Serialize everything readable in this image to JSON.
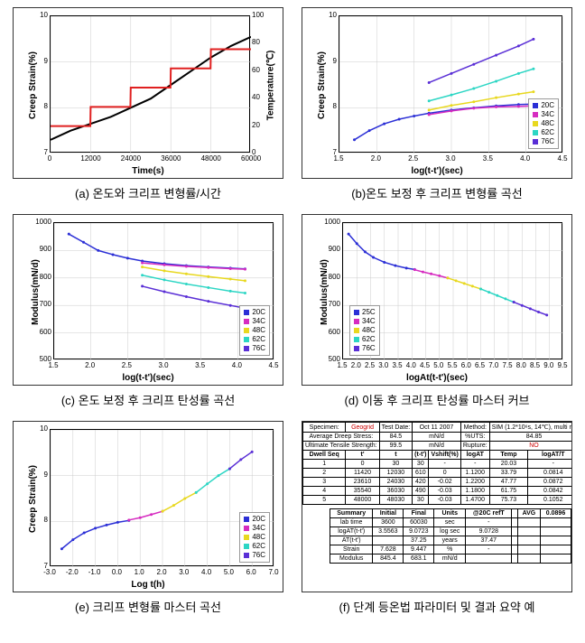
{
  "captions": {
    "a": "(a) 온도와 크리프 변형률/시간",
    "b": "(b)온도 보정 후 크리프 변형률 곡선",
    "c": "(c) 온도 보정 후 크리프 탄성률 곡선",
    "d": "(d) 이동 후 크리프 탄성률 마스터 커브",
    "e": "(e) 크리프 변형률 마스터 곡선",
    "f": "(f) 단계 등온법 파라미터 및 결과 요약 예"
  },
  "series_legend": [
    {
      "label": "20C",
      "color": "#2b2fd6"
    },
    {
      "label": "34C",
      "color": "#d62cc0"
    },
    {
      "label": "48C",
      "color": "#e8d81f"
    },
    {
      "label": "62C",
      "color": "#2cd6c4"
    },
    {
      "label": "76C",
      "color": "#5a2fd6"
    }
  ],
  "series_legend_d": [
    {
      "label": "25C",
      "color": "#2b2fd6"
    },
    {
      "label": "34C",
      "color": "#d62cc0"
    },
    {
      "label": "48C",
      "color": "#e8d81f"
    },
    {
      "label": "62C",
      "color": "#2cd6c4"
    },
    {
      "label": "76C",
      "color": "#5a2fd6"
    }
  ],
  "chart_a": {
    "type": "line-dual",
    "xlabel": "Time(s)",
    "ylabel_left": "Creep Strain(%)",
    "ylabel_right": "Temperature(℃)",
    "xlim": [
      0,
      60000
    ],
    "xtick_step": 12000,
    "ylim_left": [
      7,
      10
    ],
    "ytick_left": [
      7,
      8,
      9,
      10
    ],
    "ylim_right": [
      0,
      100
    ],
    "ytick_right": [
      0,
      20,
      40,
      60,
      80,
      100
    ],
    "grid_color": "#cccccc",
    "strain_color": "#000000",
    "temp_color": "#e02020",
    "strain": [
      [
        0,
        7.3
      ],
      [
        6000,
        7.5
      ],
      [
        12000,
        7.65
      ],
      [
        18000,
        7.8
      ],
      [
        24000,
        8.0
      ],
      [
        30000,
        8.2
      ],
      [
        36000,
        8.5
      ],
      [
        42000,
        8.8
      ],
      [
        48000,
        9.1
      ],
      [
        54000,
        9.35
      ],
      [
        60000,
        9.55
      ]
    ],
    "temp": [
      [
        0,
        20
      ],
      [
        11900,
        20
      ],
      [
        12000,
        34
      ],
      [
        23900,
        34
      ],
      [
        24000,
        48
      ],
      [
        35900,
        48
      ],
      [
        36000,
        62
      ],
      [
        47900,
        62
      ],
      [
        48000,
        76
      ],
      [
        60000,
        76
      ]
    ]
  },
  "chart_b": {
    "type": "scatter",
    "xlabel": "log(t-t')(sec)",
    "ylabel": "Creep Strain(%)",
    "xlim": [
      1.5,
      4.5
    ],
    "xtick_step": 0.5,
    "ylim": [
      7,
      10
    ],
    "ytick_step": 1,
    "series": {
      "20C": [
        [
          1.7,
          7.3
        ],
        [
          1.9,
          7.5
        ],
        [
          2.1,
          7.65
        ],
        [
          2.3,
          7.75
        ],
        [
          2.5,
          7.82
        ],
        [
          2.7,
          7.88
        ],
        [
          3.0,
          7.95
        ],
        [
          3.3,
          8.0
        ],
        [
          3.6,
          8.04
        ],
        [
          3.9,
          8.07
        ],
        [
          4.1,
          8.08
        ]
      ],
      "34C": [
        [
          2.7,
          7.85
        ],
        [
          3.0,
          7.93
        ],
        [
          3.3,
          7.99
        ],
        [
          3.6,
          8.02
        ],
        [
          3.9,
          8.03
        ],
        [
          4.1,
          8.04
        ]
      ],
      "48C": [
        [
          2.7,
          7.95
        ],
        [
          3.0,
          8.05
        ],
        [
          3.3,
          8.13
        ],
        [
          3.6,
          8.22
        ],
        [
          3.9,
          8.3
        ],
        [
          4.1,
          8.35
        ]
      ],
      "62C": [
        [
          2.7,
          8.15
        ],
        [
          3.0,
          8.28
        ],
        [
          3.3,
          8.42
        ],
        [
          3.6,
          8.58
        ],
        [
          3.9,
          8.75
        ],
        [
          4.1,
          8.85
        ]
      ],
      "76C": [
        [
          2.7,
          8.55
        ],
        [
          3.0,
          8.75
        ],
        [
          3.3,
          8.95
        ],
        [
          3.6,
          9.15
        ],
        [
          3.9,
          9.35
        ],
        [
          4.1,
          9.5
        ]
      ]
    }
  },
  "chart_c": {
    "type": "scatter",
    "xlabel": "log(t-t')(sec)",
    "ylabel": "Modulus(mN/d)",
    "xlim": [
      1.5,
      4.5
    ],
    "xtick_step": 0.5,
    "ylim": [
      500,
      1000
    ],
    "ytick_step": 100,
    "series": {
      "20C": [
        [
          1.7,
          960
        ],
        [
          1.9,
          930
        ],
        [
          2.1,
          900
        ],
        [
          2.3,
          885
        ],
        [
          2.5,
          872
        ],
        [
          2.7,
          862
        ],
        [
          3.0,
          852
        ],
        [
          3.3,
          845
        ],
        [
          3.6,
          840
        ],
        [
          3.9,
          836
        ],
        [
          4.1,
          833
        ]
      ],
      "34C": [
        [
          2.7,
          855
        ],
        [
          3.0,
          848
        ],
        [
          3.3,
          842
        ],
        [
          3.6,
          838
        ],
        [
          3.9,
          834
        ],
        [
          4.1,
          832
        ]
      ],
      "48C": [
        [
          2.7,
          840
        ],
        [
          3.0,
          826
        ],
        [
          3.3,
          815
        ],
        [
          3.6,
          805
        ],
        [
          3.9,
          796
        ],
        [
          4.1,
          790
        ]
      ],
      "62C": [
        [
          2.7,
          810
        ],
        [
          3.0,
          793
        ],
        [
          3.3,
          778
        ],
        [
          3.6,
          765
        ],
        [
          3.9,
          752
        ],
        [
          4.1,
          745
        ]
      ],
      "76C": [
        [
          2.7,
          770
        ],
        [
          3.0,
          750
        ],
        [
          3.3,
          732
        ],
        [
          3.6,
          715
        ],
        [
          3.9,
          700
        ],
        [
          4.1,
          690
        ]
      ]
    }
  },
  "chart_d": {
    "type": "scatter",
    "xlabel": "logAt(t-t')(sec)",
    "ylabel": "Modulus(mN/d)",
    "xlim": [
      1.5,
      9.5
    ],
    "xtick_step": 0.5,
    "ylim": [
      500,
      1000
    ],
    "ytick_step": 100,
    "series": {
      "25C": [
        [
          1.7,
          960
        ],
        [
          2.0,
          925
        ],
        [
          2.3,
          895
        ],
        [
          2.6,
          875
        ],
        [
          3.0,
          857
        ],
        [
          3.4,
          845
        ],
        [
          3.8,
          836
        ],
        [
          4.1,
          831
        ]
      ],
      "34C": [
        [
          4.1,
          830
        ],
        [
          4.4,
          822
        ],
        [
          4.7,
          815
        ],
        [
          5.0,
          808
        ],
        [
          5.3,
          800
        ]
      ],
      "48C": [
        [
          5.3,
          800
        ],
        [
          5.6,
          790
        ],
        [
          5.9,
          780
        ],
        [
          6.2,
          770
        ],
        [
          6.5,
          760
        ]
      ],
      "62C": [
        [
          6.5,
          760
        ],
        [
          6.8,
          748
        ],
        [
          7.1,
          736
        ],
        [
          7.4,
          724
        ],
        [
          7.7,
          712
        ]
      ],
      "76C": [
        [
          7.7,
          712
        ],
        [
          8.0,
          700
        ],
        [
          8.3,
          688
        ],
        [
          8.6,
          676
        ],
        [
          8.9,
          665
        ]
      ]
    }
  },
  "chart_e": {
    "type": "scatter",
    "xlabel": "Log t(h)",
    "ylabel": "Creep Strain(%)",
    "xlim": [
      -3.0,
      7.0
    ],
    "xtick_step": 1.0,
    "ylim": [
      7,
      10
    ],
    "ytick_step": 1,
    "series": {
      "20C": [
        [
          -2.5,
          7.4
        ],
        [
          -2.0,
          7.6
        ],
        [
          -1.5,
          7.75
        ],
        [
          -1.0,
          7.85
        ],
        [
          -0.5,
          7.92
        ],
        [
          0.0,
          7.98
        ],
        [
          0.5,
          8.02
        ]
      ],
      "34C": [
        [
          0.5,
          8.03
        ],
        [
          1.0,
          8.08
        ],
        [
          1.5,
          8.15
        ],
        [
          2.0,
          8.22
        ]
      ],
      "48C": [
        [
          2.0,
          8.22
        ],
        [
          2.5,
          8.35
        ],
        [
          3.0,
          8.5
        ],
        [
          3.5,
          8.63
        ]
      ],
      "62C": [
        [
          3.5,
          8.63
        ],
        [
          4.0,
          8.82
        ],
        [
          4.5,
          9.0
        ],
        [
          5.0,
          9.15
        ]
      ],
      "76C": [
        [
          5.0,
          9.15
        ],
        [
          5.5,
          9.35
        ],
        [
          6.0,
          9.52
        ]
      ]
    }
  },
  "panel_f": {
    "header": {
      "specimen_lbl": "Specimen:",
      "specimen": "Geogrid",
      "date_lbl": "Test Date:",
      "date": "Oct 11 2007",
      "method_lbl": "Method:",
      "method": "SIM (1.2*10⁶s, 14℃), multi nb",
      "avg_stress_lbl": "Average Dreep Stress:",
      "avg_stress": "84.5",
      "avg_stress_unit": "mN/d",
      "uts_pct_lbl": "%UTS:",
      "uts_pct": "84.85",
      "uts_lbl": "Ultimate Tensile Strength:",
      "uts": "99.5",
      "uts_unit": "mN/d",
      "rupture_lbl": "Rupture:",
      "rupture": "NO"
    },
    "cols": [
      "Dwell Seq",
      "t'",
      "t",
      "(t-t')",
      "Vshift(%)",
      "logAT",
      "Temp",
      "logAT/T"
    ],
    "rows": [
      [
        "1",
        "0",
        "30",
        "30",
        "-",
        "-",
        "20.03",
        "-"
      ],
      [
        "2",
        "11420",
        "12030",
        "610",
        "0",
        "1.1200",
        "33.79",
        "0.0814"
      ],
      [
        "3",
        "23610",
        "24030",
        "420",
        "-0.02",
        "1.2200",
        "47.77",
        "0.0872"
      ],
      [
        "4",
        "35540",
        "36030",
        "490",
        "-0.03",
        "1.1800",
        "61.75",
        "0.0842"
      ],
      [
        "5",
        "48000",
        "48030",
        "30",
        "-0.03",
        "1.4700",
        "75.73",
        "0.1052"
      ]
    ],
    "summary_cols": [
      "Summary",
      "Initial",
      "Final",
      "Units",
      "@20C refT",
      "",
      "AVG",
      "0.0896"
    ],
    "summary_rows": [
      [
        "lab time",
        "3600",
        "60030",
        "sec",
        "-"
      ],
      [
        "logAT(t-t')",
        "3.5563",
        "9.0723",
        "log sec",
        "9.0728"
      ],
      [
        "AT(t-t')",
        "",
        "37.25",
        "years",
        "37.47"
      ],
      [
        "Strain",
        "7.628",
        "9.447",
        "%",
        "-"
      ],
      [
        "Modulus",
        "845.4",
        "683.1",
        "mN/d",
        ""
      ]
    ]
  }
}
